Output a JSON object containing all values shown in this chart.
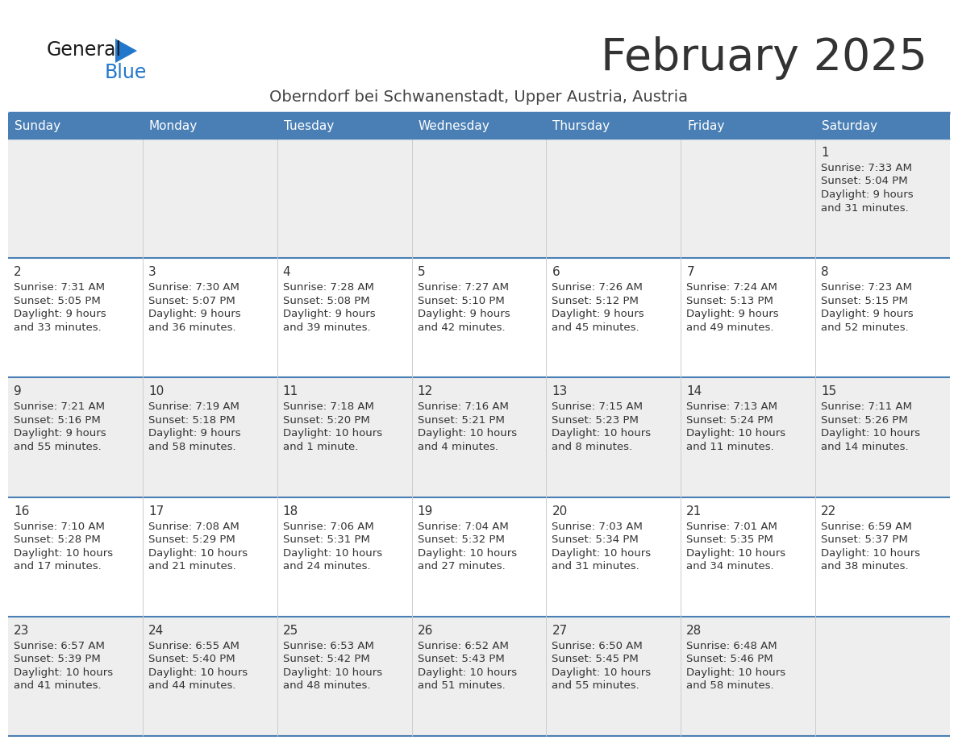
{
  "title": "February 2025",
  "subtitle": "Oberndorf bei Schwanenstadt, Upper Austria, Austria",
  "header_bg": "#4a7fb5",
  "header_text": "#ffffff",
  "day_names": [
    "Sunday",
    "Monday",
    "Tuesday",
    "Wednesday",
    "Thursday",
    "Friday",
    "Saturday"
  ],
  "row_bg_light": "#eeeeee",
  "row_bg_white": "#ffffff",
  "cell_border_color": "#4a7fb5",
  "text_color": "#333333",
  "weeks": [
    [
      {
        "day": null
      },
      {
        "day": null
      },
      {
        "day": null
      },
      {
        "day": null
      },
      {
        "day": null
      },
      {
        "day": null
      },
      {
        "day": 1,
        "sunrise": "7:33 AM",
        "sunset": "5:04 PM",
        "daylight_h": "9 hours",
        "daylight_m": "31 minutes."
      }
    ],
    [
      {
        "day": 2,
        "sunrise": "7:31 AM",
        "sunset": "5:05 PM",
        "daylight_h": "9 hours",
        "daylight_m": "33 minutes."
      },
      {
        "day": 3,
        "sunrise": "7:30 AM",
        "sunset": "5:07 PM",
        "daylight_h": "9 hours",
        "daylight_m": "36 minutes."
      },
      {
        "day": 4,
        "sunrise": "7:28 AM",
        "sunset": "5:08 PM",
        "daylight_h": "9 hours",
        "daylight_m": "39 minutes."
      },
      {
        "day": 5,
        "sunrise": "7:27 AM",
        "sunset": "5:10 PM",
        "daylight_h": "9 hours",
        "daylight_m": "42 minutes."
      },
      {
        "day": 6,
        "sunrise": "7:26 AM",
        "sunset": "5:12 PM",
        "daylight_h": "9 hours",
        "daylight_m": "45 minutes."
      },
      {
        "day": 7,
        "sunrise": "7:24 AM",
        "sunset": "5:13 PM",
        "daylight_h": "9 hours",
        "daylight_m": "49 minutes."
      },
      {
        "day": 8,
        "sunrise": "7:23 AM",
        "sunset": "5:15 PM",
        "daylight_h": "9 hours",
        "daylight_m": "52 minutes."
      }
    ],
    [
      {
        "day": 9,
        "sunrise": "7:21 AM",
        "sunset": "5:16 PM",
        "daylight_h": "9 hours",
        "daylight_m": "55 minutes."
      },
      {
        "day": 10,
        "sunrise": "7:19 AM",
        "sunset": "5:18 PM",
        "daylight_h": "9 hours",
        "daylight_m": "58 minutes."
      },
      {
        "day": 11,
        "sunrise": "7:18 AM",
        "sunset": "5:20 PM",
        "daylight_h": "10 hours",
        "daylight_m": "1 minute."
      },
      {
        "day": 12,
        "sunrise": "7:16 AM",
        "sunset": "5:21 PM",
        "daylight_h": "10 hours",
        "daylight_m": "4 minutes."
      },
      {
        "day": 13,
        "sunrise": "7:15 AM",
        "sunset": "5:23 PM",
        "daylight_h": "10 hours",
        "daylight_m": "8 minutes."
      },
      {
        "day": 14,
        "sunrise": "7:13 AM",
        "sunset": "5:24 PM",
        "daylight_h": "10 hours",
        "daylight_m": "11 minutes."
      },
      {
        "day": 15,
        "sunrise": "7:11 AM",
        "sunset": "5:26 PM",
        "daylight_h": "10 hours",
        "daylight_m": "14 minutes."
      }
    ],
    [
      {
        "day": 16,
        "sunrise": "7:10 AM",
        "sunset": "5:28 PM",
        "daylight_h": "10 hours",
        "daylight_m": "17 minutes."
      },
      {
        "day": 17,
        "sunrise": "7:08 AM",
        "sunset": "5:29 PM",
        "daylight_h": "10 hours",
        "daylight_m": "21 minutes."
      },
      {
        "day": 18,
        "sunrise": "7:06 AM",
        "sunset": "5:31 PM",
        "daylight_h": "10 hours",
        "daylight_m": "24 minutes."
      },
      {
        "day": 19,
        "sunrise": "7:04 AM",
        "sunset": "5:32 PM",
        "daylight_h": "10 hours",
        "daylight_m": "27 minutes."
      },
      {
        "day": 20,
        "sunrise": "7:03 AM",
        "sunset": "5:34 PM",
        "daylight_h": "10 hours",
        "daylight_m": "31 minutes."
      },
      {
        "day": 21,
        "sunrise": "7:01 AM",
        "sunset": "5:35 PM",
        "daylight_h": "10 hours",
        "daylight_m": "34 minutes."
      },
      {
        "day": 22,
        "sunrise": "6:59 AM",
        "sunset": "5:37 PM",
        "daylight_h": "10 hours",
        "daylight_m": "38 minutes."
      }
    ],
    [
      {
        "day": 23,
        "sunrise": "6:57 AM",
        "sunset": "5:39 PM",
        "daylight_h": "10 hours",
        "daylight_m": "41 minutes."
      },
      {
        "day": 24,
        "sunrise": "6:55 AM",
        "sunset": "5:40 PM",
        "daylight_h": "10 hours",
        "daylight_m": "44 minutes."
      },
      {
        "day": 25,
        "sunrise": "6:53 AM",
        "sunset": "5:42 PM",
        "daylight_h": "10 hours",
        "daylight_m": "48 minutes."
      },
      {
        "day": 26,
        "sunrise": "6:52 AM",
        "sunset": "5:43 PM",
        "daylight_h": "10 hours",
        "daylight_m": "51 minutes."
      },
      {
        "day": 27,
        "sunrise": "6:50 AM",
        "sunset": "5:45 PM",
        "daylight_h": "10 hours",
        "daylight_m": "55 minutes."
      },
      {
        "day": 28,
        "sunrise": "6:48 AM",
        "sunset": "5:46 PM",
        "daylight_h": "10 hours",
        "daylight_m": "58 minutes."
      },
      {
        "day": null
      }
    ]
  ]
}
